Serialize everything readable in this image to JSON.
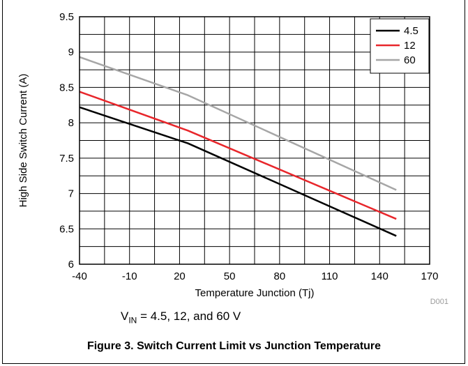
{
  "chart_data": {
    "type": "line",
    "title": "",
    "xlabel": "Temperature Junction (Tj)",
    "ylabel": "High Side Switch Current (A)",
    "xlim": [
      -40,
      170
    ],
    "ylim": [
      6,
      9.5
    ],
    "xticks": [
      "-40",
      "-10",
      "20",
      "50",
      "80",
      "110",
      "140",
      "170"
    ],
    "yticks": [
      "6",
      "6.5",
      "7",
      "7.5",
      "8",
      "8.5",
      "9",
      "9.5"
    ],
    "grid": true,
    "legend_position": "top-right",
    "series": [
      {
        "name": "4.5",
        "color": "#000000",
        "x": [
          -40,
          25,
          150
        ],
        "y": [
          8.22,
          7.71,
          6.4
        ]
      },
      {
        "name": "12",
        "color": "#e8262b",
        "x": [
          -40,
          25,
          150
        ],
        "y": [
          8.44,
          7.89,
          6.64
        ]
      },
      {
        "name": "60",
        "color": "#a6a6a6",
        "x": [
          -40,
          25,
          150
        ],
        "y": [
          8.93,
          8.39,
          7.05
        ]
      }
    ],
    "annotation_code": "D001"
  },
  "condition": {
    "v": "V",
    "sub": "IN",
    "rest": " = 4.5, 12, and 60 V"
  },
  "caption": "Figure 3. Switch Current Limit vs Junction Temperature"
}
